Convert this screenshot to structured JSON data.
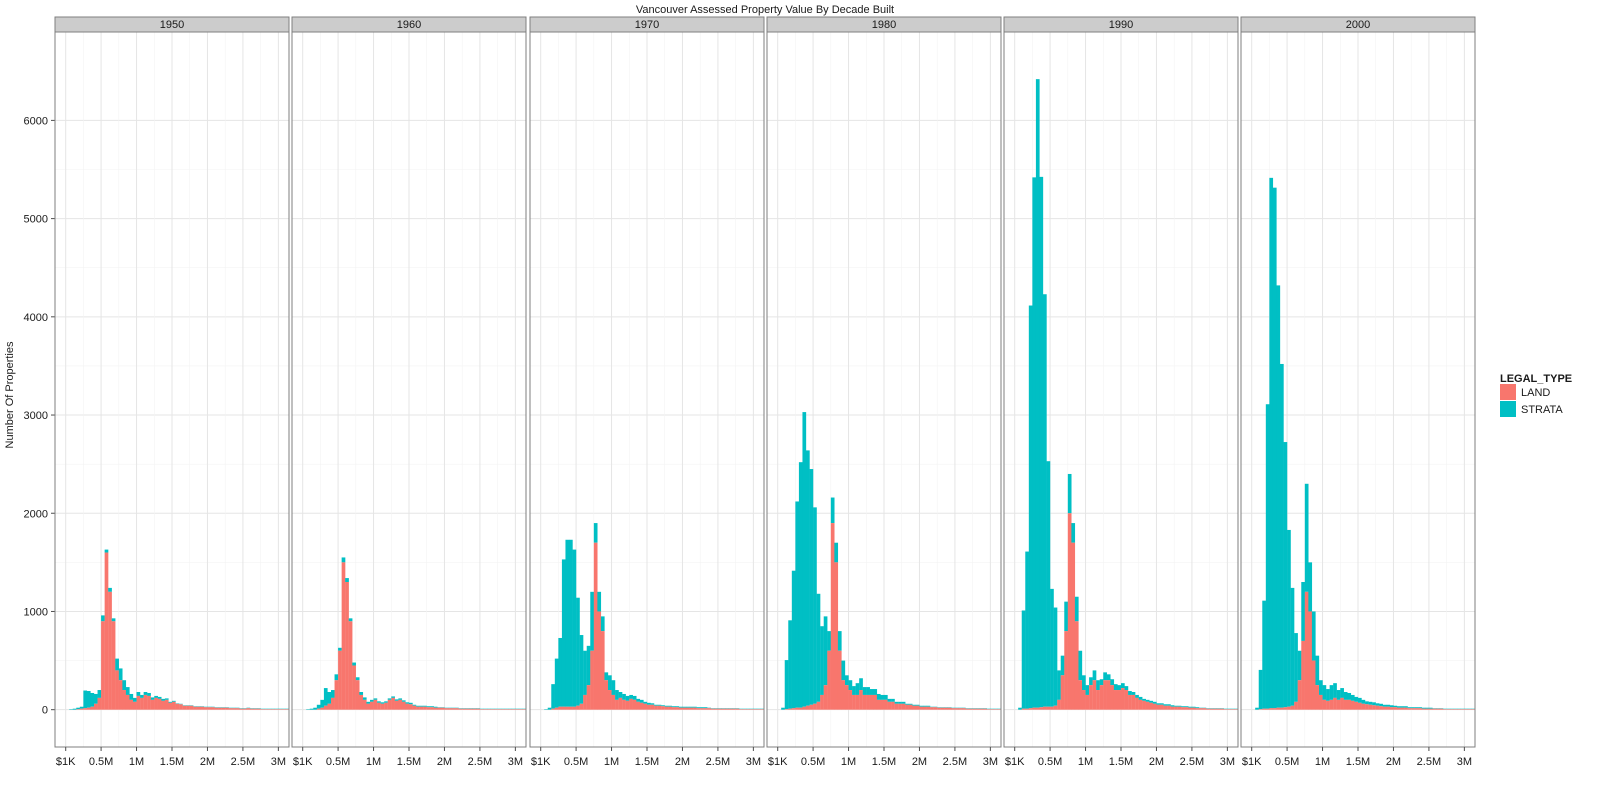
{
  "chart_data": {
    "type": "bar",
    "subtype": "stacked-histogram-faceted",
    "title": "Vancouver Assessed Property Value By Decade Built",
    "xlabel": "",
    "ylabel": "Number Of Properties",
    "xlim": [
      -150000,
      3150000
    ],
    "ylim": [
      -380,
      6900
    ],
    "bin_width": 50000,
    "x_ticks": [
      {
        "value": 1000,
        "label": "$1K"
      },
      {
        "value": 500000,
        "label": "0.5M"
      },
      {
        "value": 1000000,
        "label": "1M"
      },
      {
        "value": 1500000,
        "label": "1.5M"
      },
      {
        "value": 2000000,
        "label": "2M"
      },
      {
        "value": 2500000,
        "label": "2.5M"
      },
      {
        "value": 3000000,
        "label": "3M"
      }
    ],
    "y_ticks": [
      0,
      1000,
      2000,
      3000,
      4000,
      5000,
      6000
    ],
    "legend": {
      "title": "LEGAL_TYPE",
      "position": "right",
      "items": [
        {
          "label": "LAND",
          "color": "#f8766d"
        },
        {
          "label": "STRATA",
          "color": "#00bfc4"
        }
      ]
    },
    "panels": [
      {
        "label": "1950",
        "land": [
          0,
          0,
          0,
          5,
          10,
          15,
          20,
          30,
          60,
          120,
          900,
          1600,
          1200,
          900,
          400,
          300,
          200,
          150,
          100,
          80,
          140,
          120,
          150,
          140,
          100,
          120,
          110,
          90,
          100,
          70,
          80,
          60,
          55,
          40,
          40,
          40,
          30,
          30,
          30,
          25,
          25,
          25,
          20,
          20,
          20,
          20,
          15,
          15,
          15,
          10,
          10,
          15,
          10,
          10,
          10,
          5,
          5,
          5,
          5,
          5,
          5,
          5,
          5
        ],
        "strata": [
          0,
          5,
          10,
          15,
          20,
          180,
          170,
          140,
          100,
          80,
          60,
          30,
          40,
          30,
          120,
          120,
          100,
          80,
          60,
          40,
          40,
          30,
          30,
          30,
          25,
          20,
          20,
          20,
          15,
          10,
          10,
          5,
          5,
          5,
          5,
          5,
          5,
          5,
          5,
          5,
          5,
          5,
          5,
          5,
          5,
          5,
          5,
          5,
          5,
          5,
          5,
          5,
          5,
          5,
          5,
          5,
          5,
          5,
          5,
          5,
          5,
          5,
          5
        ]
      },
      {
        "label": "1960",
        "land": [
          0,
          0,
          0,
          0,
          10,
          20,
          40,
          60,
          120,
          300,
          600,
          1500,
          1300,
          900,
          450,
          300,
          150,
          100,
          60,
          80,
          100,
          70,
          60,
          70,
          100,
          120,
          90,
          100,
          80,
          60,
          55,
          40,
          30,
          30,
          30,
          25,
          25,
          20,
          20,
          20,
          15,
          15,
          15,
          15,
          10,
          10,
          10,
          10,
          10,
          10,
          5,
          5,
          5,
          5,
          5,
          5,
          5,
          5,
          5,
          5,
          5,
          5,
          5
        ],
        "strata": [
          0,
          5,
          10,
          20,
          40,
          80,
          180,
          120,
          80,
          60,
          30,
          50,
          40,
          30,
          30,
          30,
          30,
          25,
          20,
          20,
          15,
          15,
          15,
          15,
          15,
          15,
          15,
          15,
          15,
          15,
          15,
          10,
          10,
          10,
          10,
          10,
          10,
          10,
          5,
          5,
          5,
          5,
          5,
          5,
          5,
          5,
          5,
          5,
          5,
          5,
          5,
          5,
          5,
          5,
          5,
          5,
          5,
          5,
          5,
          5,
          5,
          5,
          5
        ]
      },
      {
        "label": "1970",
        "land": [
          0,
          0,
          0,
          10,
          20,
          30,
          30,
          30,
          30,
          30,
          40,
          60,
          150,
          250,
          600,
          1700,
          1000,
          800,
          300,
          200,
          150,
          100,
          120,
          100,
          90,
          110,
          100,
          80,
          70,
          60,
          50,
          50,
          40,
          40,
          35,
          30,
          30,
          25,
          25,
          20,
          20,
          20,
          20,
          20,
          15,
          15,
          15,
          15,
          10,
          10,
          10,
          10,
          10,
          10,
          10,
          10,
          5,
          5,
          5,
          5,
          5,
          5,
          5
        ],
        "strata": [
          0,
          5,
          20,
          250,
          500,
          700,
          1500,
          1700,
          1700,
          1600,
          1100,
          700,
          450,
          400,
          600,
          200,
          200,
          150,
          80,
          150,
          150,
          100,
          60,
          60,
          50,
          40,
          40,
          30,
          30,
          20,
          20,
          15,
          10,
          10,
          10,
          10,
          10,
          10,
          10,
          10,
          10,
          10,
          10,
          10,
          10,
          10,
          10,
          5,
          5,
          5,
          5,
          5,
          5,
          5,
          5,
          5,
          5,
          5,
          5,
          5,
          5,
          5,
          5
        ]
      },
      {
        "label": "1980",
        "land": [
          0,
          0,
          5,
          10,
          15,
          20,
          20,
          30,
          40,
          50,
          60,
          80,
          150,
          250,
          600,
          1900,
          1500,
          600,
          300,
          250,
          200,
          150,
          150,
          200,
          150,
          150,
          150,
          150,
          100,
          100,
          100,
          80,
          80,
          60,
          60,
          60,
          50,
          50,
          40,
          40,
          30,
          30,
          30,
          25,
          25,
          20,
          20,
          20,
          20,
          15,
          15,
          15,
          15,
          10,
          10,
          10,
          10,
          10,
          10,
          5,
          5,
          5,
          5
        ],
        "strata": [
          0,
          20,
          500,
          900,
          1400,
          2100,
          2500,
          3000,
          2600,
          2400,
          2000,
          1100,
          700,
          700,
          200,
          260,
          200,
          200,
          200,
          100,
          100,
          90,
          120,
          120,
          80,
          80,
          60,
          60,
          60,
          50,
          50,
          30,
          30,
          20,
          20,
          20,
          10,
          10,
          10,
          10,
          10,
          10,
          10,
          5,
          5,
          5,
          5,
          5,
          5,
          5,
          5,
          5,
          5,
          5,
          5,
          5,
          5,
          5,
          5,
          5,
          5,
          5,
          5
        ]
      },
      {
        "label": "1990",
        "land": [
          0,
          0,
          10,
          10,
          15,
          20,
          20,
          25,
          30,
          30,
          30,
          40,
          100,
          350,
          800,
          2000,
          1700,
          900,
          300,
          200,
          150,
          250,
          300,
          200,
          250,
          300,
          300,
          250,
          200,
          200,
          220,
          200,
          150,
          150,
          120,
          100,
          90,
          80,
          70,
          60,
          50,
          50,
          40,
          40,
          30,
          30,
          30,
          25,
          25,
          20,
          20,
          15,
          15,
          15,
          10,
          10,
          10,
          10,
          10,
          5,
          5,
          5,
          5
        ],
        "strata": [
          0,
          20,
          1000,
          1600,
          4100,
          5400,
          6400,
          5400,
          4200,
          2500,
          1200,
          1000,
          300,
          200,
          300,
          400,
          200,
          250,
          300,
          150,
          100,
          80,
          100,
          100,
          60,
          80,
          60,
          60,
          60,
          50,
          50,
          40,
          40,
          30,
          30,
          30,
          20,
          20,
          20,
          20,
          15,
          15,
          15,
          15,
          15,
          10,
          10,
          10,
          10,
          10,
          10,
          10,
          5,
          5,
          5,
          5,
          5,
          5,
          5,
          5,
          5,
          5,
          5
        ]
      },
      {
        "label": "2000",
        "land": [
          0,
          0,
          5,
          10,
          10,
          15,
          15,
          20,
          20,
          25,
          30,
          40,
          80,
          300,
          700,
          1200,
          1000,
          500,
          250,
          150,
          100,
          90,
          100,
          120,
          100,
          120,
          100,
          100,
          90,
          80,
          70,
          60,
          55,
          50,
          45,
          40,
          35,
          30,
          30,
          25,
          25,
          20,
          20,
          20,
          15,
          15,
          15,
          15,
          10,
          10,
          10,
          10,
          10,
          10,
          5,
          5,
          5,
          5,
          5,
          5,
          5,
          5,
          5
        ],
        "strata": [
          0,
          20,
          400,
          1100,
          3100,
          5400,
          5300,
          4300,
          3500,
          2700,
          1800,
          1200,
          700,
          300,
          600,
          1100,
          500,
          500,
          300,
          150,
          150,
          120,
          150,
          150,
          100,
          100,
          80,
          70,
          60,
          50,
          50,
          40,
          30,
          30,
          30,
          25,
          25,
          20,
          20,
          20,
          15,
          15,
          15,
          15,
          10,
          10,
          10,
          10,
          10,
          10,
          10,
          5,
          5,
          5,
          5,
          5,
          5,
          5,
          5,
          5,
          5,
          5,
          5
        ]
      }
    ]
  }
}
